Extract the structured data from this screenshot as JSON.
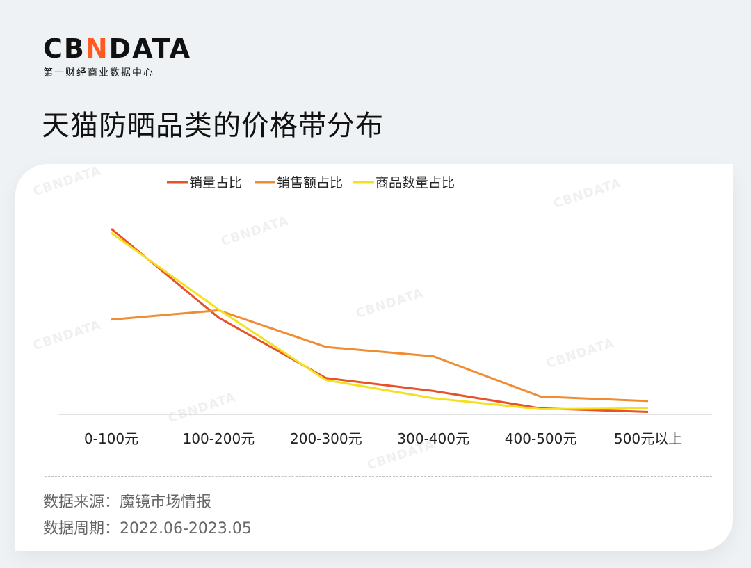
{
  "logo": {
    "main_a": "CB",
    "main_x": "N",
    "main_b": "DATA",
    "sub": "第一财经商业数据中心"
  },
  "title": "天猫防晒品类的价格带分布",
  "watermark": "CBNDATA",
  "source_label": "数据来源：魔镜市场情报",
  "period_label": "数据周期：2022.06-2023.05",
  "colors": {
    "sales_volume": "#e8522a",
    "sales_amount": "#f08c32",
    "product_count": "#f5e020"
  },
  "chart_data": {
    "type": "line",
    "title": "",
    "xlabel": "",
    "ylabel": "",
    "categories": [
      "0-100元",
      "100-200元",
      "200-300元",
      "300-400元",
      "400-500元",
      "500元以上"
    ],
    "ylim": [
      0,
      0.5
    ],
    "grid": false,
    "legend_position": "top",
    "series": [
      {
        "name": "销量占比",
        "color": "#e8522a",
        "values": [
          0.46,
          0.24,
          0.09,
          0.058,
          0.015,
          0.006
        ]
      },
      {
        "name": "销售额占比",
        "color": "#f08c32",
        "values": [
          0.235,
          0.258,
          0.167,
          0.144,
          0.044,
          0.033
        ]
      },
      {
        "name": "商品数量占比",
        "color": "#f5e020",
        "values": [
          0.45,
          0.26,
          0.085,
          0.04,
          0.013,
          0.015
        ]
      }
    ]
  }
}
